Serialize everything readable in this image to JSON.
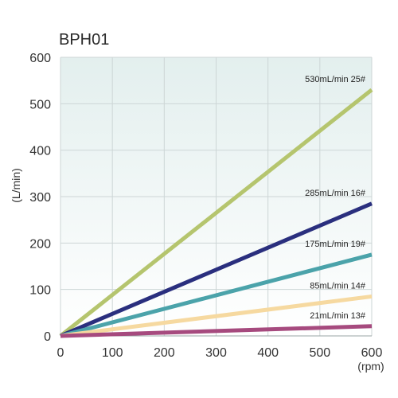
{
  "chart_data": {
    "type": "line",
    "title": "BPH01",
    "xlabel": "(rpm)",
    "ylabel": "(L/min)",
    "xlim": [
      0,
      600
    ],
    "ylim": [
      0,
      600
    ],
    "xticks": [
      "0",
      "100",
      "200",
      "300",
      "400",
      "500",
      "600"
    ],
    "yticks": [
      "0",
      "100",
      "200",
      "300",
      "400",
      "500",
      "600"
    ],
    "grid": true,
    "series": [
      {
        "name": "530mL/min  25#",
        "x": [
          0,
          600
        ],
        "y": [
          0,
          530
        ],
        "color": "#b5c56e"
      },
      {
        "name": "285mL/min  16#",
        "x": [
          0,
          600
        ],
        "y": [
          0,
          285
        ],
        "color": "#2a2f7e"
      },
      {
        "name": "175mL/min  19#",
        "x": [
          0,
          600
        ],
        "y": [
          0,
          175
        ],
        "color": "#4ba3aa"
      },
      {
        "name": "85mL/min  14#",
        "x": [
          0,
          600
        ],
        "y": [
          0,
          85
        ],
        "color": "#f6d9a0"
      },
      {
        "name": "21mL/min  13#",
        "x": [
          0,
          600
        ],
        "y": [
          0,
          21
        ],
        "color": "#a64a7e"
      }
    ]
  }
}
